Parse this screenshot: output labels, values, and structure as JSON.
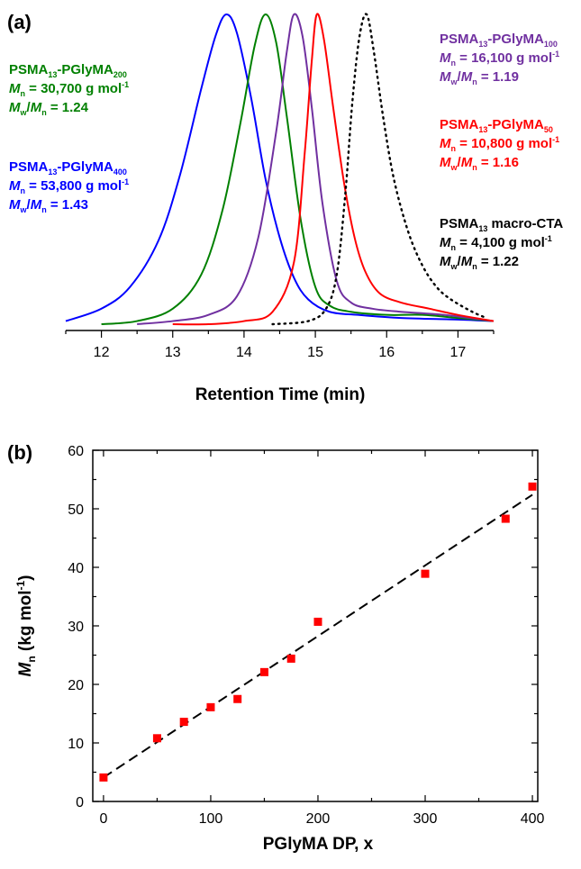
{
  "chart_data": [
    {
      "type": "line",
      "panel_label": "(a)",
      "xlabel": "Retention Time (min)",
      "ylabel": "",
      "xlim": [
        11.5,
        17.5
      ],
      "x_ticks": [
        12,
        13,
        14,
        15,
        16,
        17
      ],
      "grid": false,
      "series": [
        {
          "name": "PSMA13-PGlyMA400",
          "color": "#0000ff",
          "line_style": "solid",
          "x": [
            11.5,
            12.0,
            12.4,
            12.8,
            13.1,
            13.4,
            13.6,
            13.75,
            13.9,
            14.1,
            14.3,
            14.5,
            14.7,
            14.9,
            15.2,
            15.6,
            16.2,
            17.0,
            17.5
          ],
          "y": [
            0.01,
            0.05,
            0.12,
            0.27,
            0.48,
            0.76,
            0.93,
            1.0,
            0.94,
            0.73,
            0.47,
            0.28,
            0.15,
            0.08,
            0.04,
            0.03,
            0.02,
            0.015,
            0.01
          ]
        },
        {
          "name": "PSMA13-PGlyMA200",
          "color": "#008000",
          "line_style": "solid",
          "x": [
            12.0,
            12.5,
            13.0,
            13.4,
            13.7,
            13.95,
            14.15,
            14.3,
            14.45,
            14.6,
            14.8,
            15.0,
            15.2,
            15.5,
            16.0,
            16.5,
            17.0,
            17.5
          ],
          "y": [
            0.0,
            0.01,
            0.05,
            0.16,
            0.37,
            0.65,
            0.9,
            1.0,
            0.91,
            0.67,
            0.33,
            0.12,
            0.06,
            0.04,
            0.03,
            0.03,
            0.02,
            0.01
          ]
        },
        {
          "name": "PSMA13-PGlyMA100",
          "color": "#7030a0",
          "line_style": "solid",
          "x": [
            12.5,
            13.0,
            13.5,
            13.9,
            14.2,
            14.45,
            14.6,
            14.7,
            14.82,
            14.95,
            15.1,
            15.3,
            15.5,
            15.8,
            16.2,
            16.8,
            17.5
          ],
          "y": [
            0.0,
            0.01,
            0.03,
            0.09,
            0.28,
            0.62,
            0.88,
            1.0,
            0.93,
            0.7,
            0.39,
            0.14,
            0.07,
            0.05,
            0.04,
            0.03,
            0.01
          ]
        },
        {
          "name": "PSMA13-PGlyMA50",
          "color": "#ff0000",
          "line_style": "solid",
          "x": [
            13.0,
            13.5,
            14.0,
            14.4,
            14.7,
            14.85,
            14.95,
            15.02,
            15.12,
            15.25,
            15.4,
            15.55,
            15.7,
            15.9,
            16.2,
            16.6,
            17.0,
            17.5
          ],
          "y": [
            0.0,
            0.0,
            0.01,
            0.04,
            0.2,
            0.55,
            0.85,
            1.0,
            0.92,
            0.7,
            0.46,
            0.28,
            0.17,
            0.1,
            0.07,
            0.05,
            0.03,
            0.01
          ]
        },
        {
          "name": "PSMA13 macro-CTA",
          "color": "#000000",
          "line_style": "dotted",
          "x": [
            14.4,
            14.9,
            15.15,
            15.3,
            15.42,
            15.52,
            15.62,
            15.72,
            15.82,
            15.95,
            16.1,
            16.3,
            16.5,
            16.7,
            16.9,
            17.2,
            17.4
          ],
          "y": [
            0.0,
            0.01,
            0.05,
            0.16,
            0.42,
            0.72,
            0.93,
            1.0,
            0.88,
            0.67,
            0.47,
            0.3,
            0.19,
            0.12,
            0.08,
            0.04,
            0.02
          ]
        }
      ],
      "annotations": [
        {
          "lines": [
            {
              "parts": [
                {
                  "t": "PSMA"
                },
                {
                  "t": "13",
                  "sub": true
                },
                {
                  "t": "-PGlyMA"
                },
                {
                  "t": "200",
                  "sub": true
                }
              ]
            },
            {
              "parts": [
                {
                  "t": "M",
                  "it": true
                },
                {
                  "t": "n",
                  "sub": true
                },
                {
                  "t": " = 30,700 g mol"
                },
                {
                  "t": "-1",
                  "sup": true
                }
              ]
            },
            {
              "parts": [
                {
                  "t": "M",
                  "it": true
                },
                {
                  "t": "w",
                  "sub": true
                },
                {
                  "t": "/"
                },
                {
                  "t": "M",
                  "it": true
                },
                {
                  "t": "n",
                  "sub": true
                },
                {
                  "t": " = 1.24"
                }
              ]
            }
          ],
          "color": "#008000"
        },
        {
          "lines": [
            {
              "parts": [
                {
                  "t": "PSMA"
                },
                {
                  "t": "13",
                  "sub": true
                },
                {
                  "t": "-PGlyMA"
                },
                {
                  "t": "400",
                  "sub": true
                }
              ]
            },
            {
              "parts": [
                {
                  "t": "M",
                  "it": true
                },
                {
                  "t": "n",
                  "sub": true
                },
                {
                  "t": " = 53,800 g mol"
                },
                {
                  "t": "-1",
                  "sup": true
                }
              ]
            },
            {
              "parts": [
                {
                  "t": "M",
                  "it": true
                },
                {
                  "t": "w",
                  "sub": true
                },
                {
                  "t": "/"
                },
                {
                  "t": "M",
                  "it": true
                },
                {
                  "t": "n",
                  "sub": true
                },
                {
                  "t": " = 1.43"
                }
              ]
            }
          ],
          "color": "#0000ff"
        },
        {
          "lines": [
            {
              "parts": [
                {
                  "t": "PSMA"
                },
                {
                  "t": "13",
                  "sub": true
                },
                {
                  "t": "-PGlyMA"
                },
                {
                  "t": "100",
                  "sub": true
                }
              ]
            },
            {
              "parts": [
                {
                  "t": "M",
                  "it": true
                },
                {
                  "t": "n",
                  "sub": true
                },
                {
                  "t": " = 16,100 g mol"
                },
                {
                  "t": "-1",
                  "sup": true
                }
              ]
            },
            {
              "parts": [
                {
                  "t": "M",
                  "it": true
                },
                {
                  "t": "w",
                  "sub": true
                },
                {
                  "t": "/"
                },
                {
                  "t": "M",
                  "it": true
                },
                {
                  "t": "n",
                  "sub": true
                },
                {
                  "t": " = 1.19"
                }
              ]
            }
          ],
          "color": "#7030a0"
        },
        {
          "lines": [
            {
              "parts": [
                {
                  "t": "PSMA"
                },
                {
                  "t": "13",
                  "sub": true
                },
                {
                  "t": "-PGlyMA"
                },
                {
                  "t": "50",
                  "sub": true
                }
              ]
            },
            {
              "parts": [
                {
                  "t": "M",
                  "it": true
                },
                {
                  "t": "n",
                  "sub": true
                },
                {
                  "t": " = 10,800 g mol"
                },
                {
                  "t": "-1",
                  "sup": true
                }
              ]
            },
            {
              "parts": [
                {
                  "t": "M",
                  "it": true
                },
                {
                  "t": "w",
                  "sub": true
                },
                {
                  "t": "/"
                },
                {
                  "t": "M",
                  "it": true
                },
                {
                  "t": "n",
                  "sub": true
                },
                {
                  "t": " = 1.16"
                }
              ]
            }
          ],
          "color": "#ff0000"
        },
        {
          "lines": [
            {
              "parts": [
                {
                  "t": "PSMA"
                },
                {
                  "t": "13",
                  "sub": true
                },
                {
                  "t": " macro-CTA"
                }
              ]
            },
            {
              "parts": [
                {
                  "t": "M",
                  "it": true
                },
                {
                  "t": "n",
                  "sub": true
                },
                {
                  "t": " = 4,100 g mol"
                },
                {
                  "t": "-1",
                  "sup": true
                }
              ]
            },
            {
              "parts": [
                {
                  "t": "M",
                  "it": true
                },
                {
                  "t": "w",
                  "sub": true
                },
                {
                  "t": "/"
                },
                {
                  "t": "M",
                  "it": true
                },
                {
                  "t": "n",
                  "sub": true
                },
                {
                  "t": " = 1.22"
                }
              ]
            }
          ],
          "color": "#000000"
        }
      ]
    },
    {
      "type": "scatter",
      "panel_label": "(b)",
      "xlabel": "PGlyMA DP, x",
      "ylabel_parts": [
        {
          "t": "M",
          "it": true
        },
        {
          "t": "n",
          "sub": true
        },
        {
          "t": " (kg mol"
        },
        {
          "t": "-1",
          "sup": true
        },
        {
          "t": ")"
        }
      ],
      "xlim": [
        -10,
        405
      ],
      "ylim": [
        0,
        60
      ],
      "x_ticks": [
        0,
        100,
        200,
        300,
        400
      ],
      "y_ticks": [
        0,
        10,
        20,
        30,
        40,
        50,
        60
      ],
      "grid": false,
      "marker_color": "#ff0000",
      "x": [
        0,
        50,
        75,
        100,
        125,
        150,
        175,
        200,
        300,
        375,
        400
      ],
      "y": [
        4.1,
        10.8,
        13.6,
        16.1,
        17.5,
        22.1,
        24.4,
        30.7,
        38.9,
        48.3,
        53.8
      ],
      "fit_line": {
        "style": "dashed",
        "color": "#000000",
        "x": [
          0,
          400
        ],
        "y": [
          4.1,
          52.4
        ]
      }
    }
  ]
}
